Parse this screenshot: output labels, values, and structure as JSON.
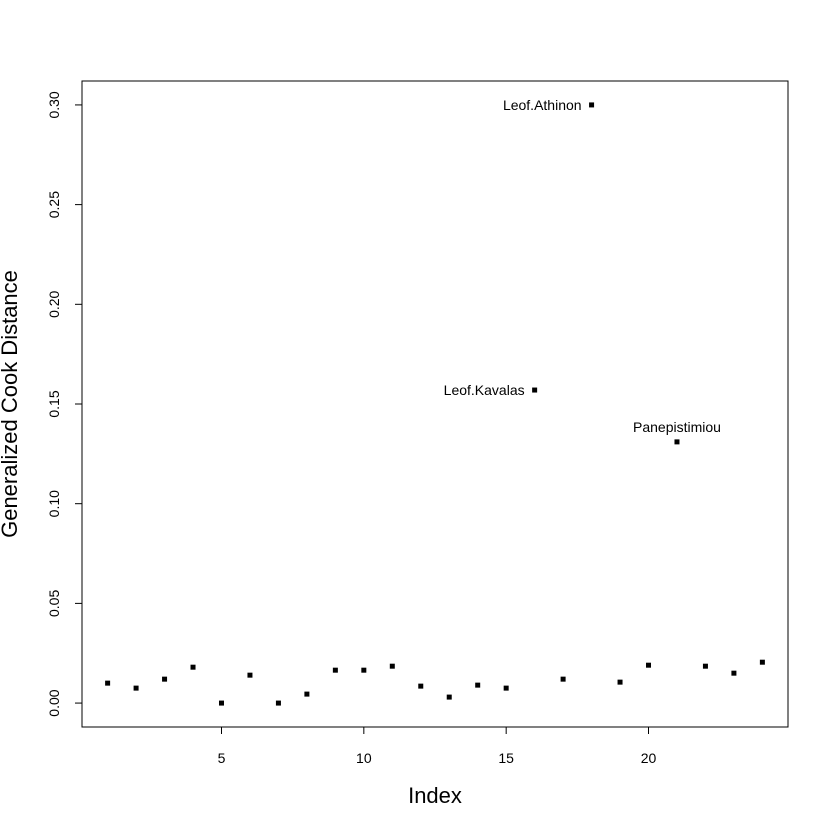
{
  "chart_data": {
    "type": "scatter",
    "title": "",
    "xlabel": "Index",
    "ylabel": "Generalized Cook Distance",
    "xlim": [
      0.1,
      24.9
    ],
    "ylim": [
      -0.012,
      0.312
    ],
    "xticks": [
      5,
      10,
      15,
      20
    ],
    "yticks": [
      0.0,
      0.05,
      0.1,
      0.15,
      0.2,
      0.25,
      0.3
    ],
    "ytick_labels": [
      "0.00",
      "0.05",
      "0.10",
      "0.15",
      "0.20",
      "0.25",
      "0.30"
    ],
    "grid": false,
    "legend": "none",
    "marker_color": "#000000",
    "points": [
      {
        "x": 1,
        "y": 0.01
      },
      {
        "x": 2,
        "y": 0.0075
      },
      {
        "x": 3,
        "y": 0.012
      },
      {
        "x": 4,
        "y": 0.018
      },
      {
        "x": 5,
        "y": 0.0
      },
      {
        "x": 6,
        "y": 0.014
      },
      {
        "x": 7,
        "y": 0.0
      },
      {
        "x": 8,
        "y": 0.0045
      },
      {
        "x": 9,
        "y": 0.0165
      },
      {
        "x": 10,
        "y": 0.0165
      },
      {
        "x": 11,
        "y": 0.0185
      },
      {
        "x": 12,
        "y": 0.0085
      },
      {
        "x": 13,
        "y": 0.003
      },
      {
        "x": 14,
        "y": 0.009
      },
      {
        "x": 15,
        "y": 0.0075
      },
      {
        "x": 16,
        "y": 0.157,
        "label": "Leof.Kavalas",
        "label_pos": "left"
      },
      {
        "x": 17,
        "y": 0.012
      },
      {
        "x": 18,
        "y": 0.3,
        "label": "Leof.Athinon",
        "label_pos": "left"
      },
      {
        "x": 19,
        "y": 0.0105
      },
      {
        "x": 20,
        "y": 0.019
      },
      {
        "x": 21,
        "y": 0.131,
        "label": "Panepistimiou",
        "label_pos": "above"
      },
      {
        "x": 22,
        "y": 0.0185
      },
      {
        "x": 23,
        "y": 0.015
      },
      {
        "x": 24,
        "y": 0.0205
      }
    ]
  }
}
